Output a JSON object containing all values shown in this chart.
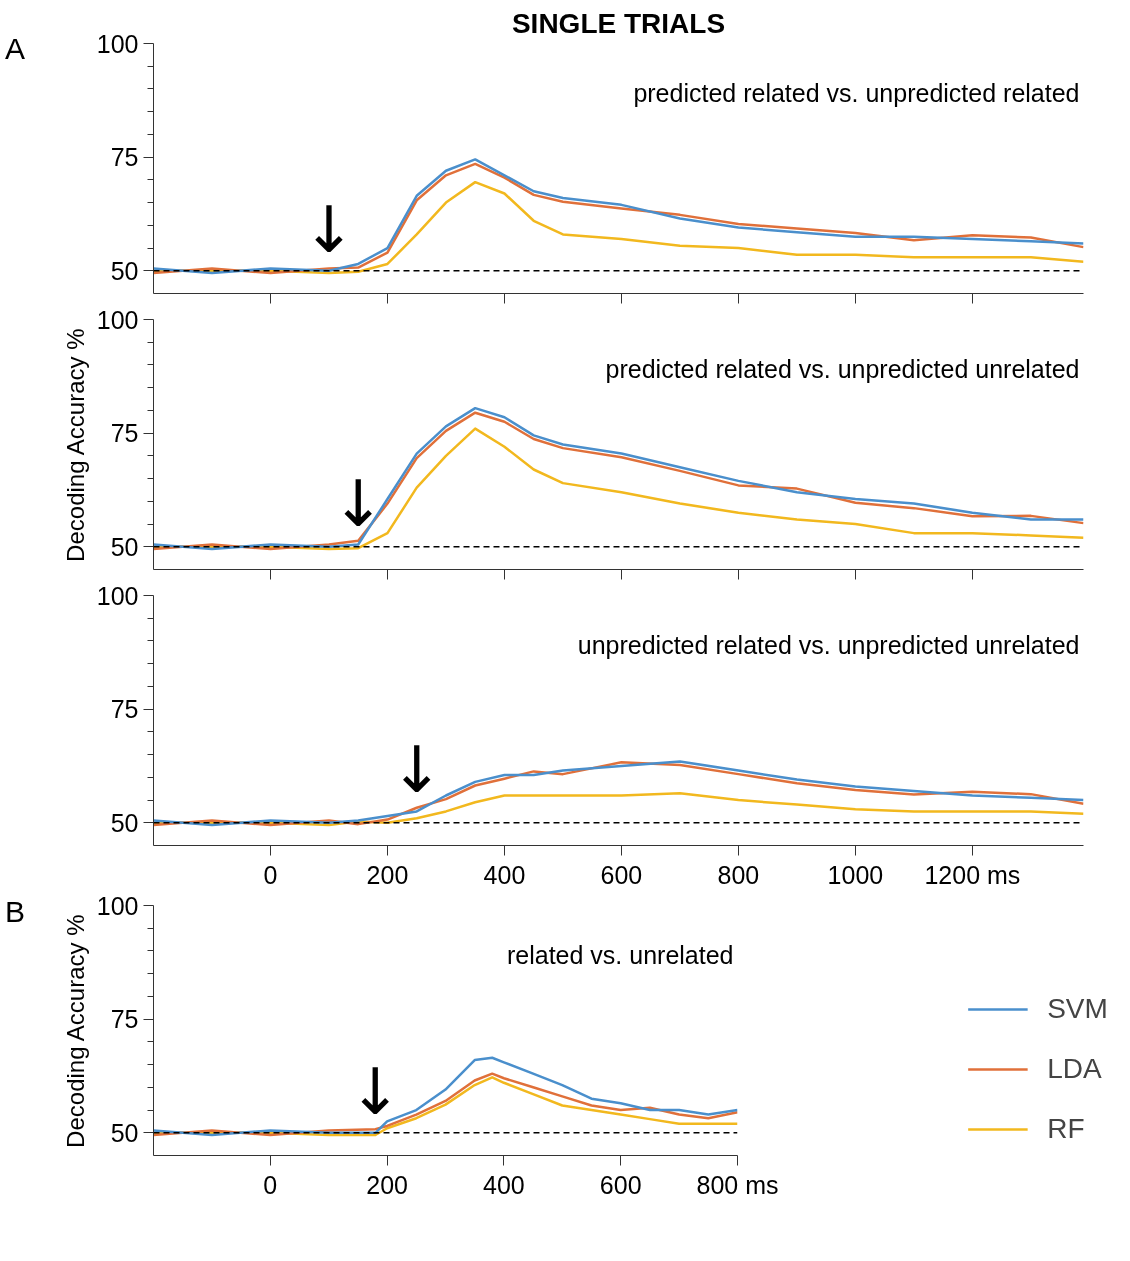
{
  "chart_data": [
    {
      "type": "line",
      "title": "SINGLE TRIALS",
      "subtitle": "predicted related vs. unpredicted related",
      "annotations": [
        "A",
        {
          "text": "↓",
          "x": 100,
          "y": 50
        }
      ],
      "x": [
        -200,
        -100,
        0,
        100,
        150,
        200,
        250,
        300,
        350,
        400,
        450,
        500,
        600,
        700,
        800,
        900,
        1000,
        1100,
        1200,
        1300,
        1390
      ],
      "series": [
        {
          "color": "#4a8fcc",
          "values": [
            50.5,
            49.5,
            50.5,
            50,
            51.5,
            55,
            66.5,
            72,
            74.5,
            71,
            67.5,
            66,
            64.5,
            61.5,
            59.5,
            58.5,
            57.5,
            57.5,
            57,
            56.5,
            56
          ]
        },
        {
          "color": "#e0703a",
          "values": [
            49.5,
            50.5,
            49.5,
            50.5,
            50.7,
            54,
            65.5,
            71,
            73.5,
            70.5,
            66.7,
            65.2,
            63.7,
            62.3,
            60.3,
            59.3,
            58.3,
            56.7,
            57.8,
            57.3,
            55.2
          ]
        },
        {
          "color": "#f2b81e",
          "values": [
            50,
            50,
            50,
            49.5,
            49.8,
            51.5,
            58,
            65,
            69.5,
            67,
            61,
            58,
            57,
            55.5,
            55,
            53.5,
            53.5,
            53,
            53,
            53,
            52
          ]
        }
      ],
      "xlim": [
        -200,
        1390
      ],
      "xticks": [
        0,
        200,
        400,
        600,
        800,
        1000,
        1200
      ],
      "ylim": [
        45,
        100
      ],
      "yticks": [
        50,
        {
          "value": 55,
          "label": null
        },
        {
          "value": 60,
          "label": null
        },
        {
          "value": 65,
          "label": null
        },
        {
          "value": 70,
          "label": null
        },
        75,
        {
          "value": 80,
          "label": null
        },
        {
          "value": 85,
          "label": null
        },
        {
          "value": 90,
          "label": null
        },
        {
          "value": 95,
          "label": null
        },
        100
      ],
      "tick_labels": "y",
      "grid": false,
      "line_style": "solid",
      "ref_lines": [
        {
          "axis": "y",
          "value": 50,
          "color": "#000000",
          "line_style": "dashed"
        }
      ]
    },
    {
      "type": "line",
      "subtitle": "predicted related vs. unpredicted unrelated",
      "ylabel": "Decoding Accuracy %",
      "annotations": [
        {
          "text": "↓",
          "x": 150,
          "y": 50.5
        }
      ],
      "x": [
        -200,
        -100,
        0,
        100,
        150,
        200,
        250,
        300,
        350,
        400,
        450,
        500,
        600,
        700,
        800,
        900,
        1000,
        1100,
        1200,
        1300,
        1390
      ],
      "series": [
        {
          "color": "#4a8fcc",
          "values": [
            50.5,
            49.5,
            50.5,
            50,
            50.5,
            60.5,
            70.5,
            76.5,
            80.5,
            78.5,
            74.5,
            72.5,
            70.5,
            67.5,
            64.5,
            62,
            60.5,
            59.5,
            57.5,
            56,
            56
          ]
        },
        {
          "color": "#e0703a",
          "values": [
            49.5,
            50.5,
            49.5,
            50.5,
            51.3,
            59.5,
            69.5,
            75.5,
            79.5,
            77.5,
            73.7,
            71.7,
            69.7,
            66.7,
            63.5,
            62.8,
            59.7,
            58.5,
            56.7,
            56.8,
            55.2
          ]
        },
        {
          "color": "#f2b81e",
          "values": [
            50,
            50,
            50,
            49.5,
            49.7,
            53,
            63,
            70,
            76,
            72,
            67,
            64,
            62,
            59.5,
            57.5,
            56,
            55,
            53,
            53,
            52.5,
            52
          ]
        }
      ],
      "xlim": [
        -200,
        1390
      ],
      "xticks": [
        0,
        200,
        400,
        600,
        800,
        1000,
        1200
      ],
      "ylim": [
        45,
        100
      ],
      "yticks": [
        50,
        {
          "value": 55,
          "label": null
        },
        {
          "value": 60,
          "label": null
        },
        {
          "value": 65,
          "label": null
        },
        {
          "value": 70,
          "label": null
        },
        75,
        {
          "value": 80,
          "label": null
        },
        {
          "value": 85,
          "label": null
        },
        {
          "value": 90,
          "label": null
        },
        {
          "value": 95,
          "label": null
        },
        100
      ],
      "tick_labels": "y",
      "grid": false,
      "line_style": "solid",
      "ref_lines": [
        {
          "axis": "y",
          "value": 50,
          "color": "#000000",
          "line_style": "dashed"
        }
      ]
    },
    {
      "type": "line",
      "subtitle": "unpredicted related vs. unpredicted unrelated",
      "annotations": [
        {
          "text": "↓",
          "x": 250,
          "y": 52.5
        }
      ],
      "x": [
        -200,
        -100,
        0,
        100,
        150,
        200,
        250,
        300,
        350,
        400,
        450,
        500,
        600,
        700,
        800,
        900,
        1000,
        1100,
        1200,
        1300,
        1390
      ],
      "series": [
        {
          "color": "#4a8fcc",
          "values": [
            50.5,
            49.5,
            50.5,
            50,
            50.5,
            51.5,
            52.5,
            56,
            59,
            60.5,
            60.5,
            61.5,
            62.5,
            63.5,
            61.5,
            59.5,
            58,
            57,
            56,
            55.5,
            55
          ]
        },
        {
          "color": "#e0703a",
          "values": [
            49.5,
            50.5,
            49.5,
            50.5,
            49.7,
            50.7,
            53.3,
            55.2,
            58.2,
            59.7,
            61.3,
            60.7,
            63.3,
            62.7,
            60.7,
            58.7,
            57.2,
            56.2,
            56.8,
            56.3,
            54.2
          ]
        },
        {
          "color": "#f2b81e",
          "values": [
            50,
            50,
            50,
            49.5,
            50.3,
            50,
            51,
            52.5,
            54.5,
            56,
            56,
            56,
            56,
            56.5,
            55,
            54,
            53,
            52.5,
            52.5,
            52.5,
            52
          ]
        }
      ],
      "xlim": [
        -200,
        1390
      ],
      "xticks": [
        0,
        200,
        400,
        600,
        800,
        1000,
        {
          "value": 1200,
          "label": "1200 ms"
        }
      ],
      "ylim": [
        45,
        100
      ],
      "yticks": [
        50,
        {
          "value": 55,
          "label": null
        },
        {
          "value": 60,
          "label": null
        },
        {
          "value": 65,
          "label": null
        },
        {
          "value": 70,
          "label": null
        },
        75,
        {
          "value": 80,
          "label": null
        },
        {
          "value": 85,
          "label": null
        },
        {
          "value": 90,
          "label": null
        },
        {
          "value": 95,
          "label": null
        },
        100
      ],
      "grid": false,
      "line_style": "solid",
      "ref_lines": [
        {
          "axis": "y",
          "value": 50,
          "color": "#000000",
          "line_style": "dashed"
        }
      ]
    },
    {
      "type": "line",
      "subtitle": "related vs. unrelated",
      "ylabel": "Decoding Accuracy %",
      "annotations": [
        "B",
        {
          "text": "↓",
          "x": 180,
          "y": 50
        }
      ],
      "x": [
        -200,
        -100,
        0,
        100,
        180,
        200,
        250,
        300,
        350,
        380,
        400,
        450,
        500,
        550,
        600,
        650,
        700,
        750,
        800
      ],
      "series": [
        {
          "name": "SVM",
          "color": "#4a8fcc",
          "values": [
            50.5,
            49.5,
            50.5,
            50,
            50,
            52.5,
            55,
            59.5,
            66,
            66.5,
            65.5,
            63,
            60.5,
            57.5,
            56.5,
            55,
            55,
            54,
            55
          ]
        },
        {
          "name": "LDA",
          "color": "#e0703a",
          "values": [
            49.5,
            50.5,
            49.5,
            50.5,
            50.8,
            51.5,
            54,
            57,
            61.5,
            63,
            62,
            60,
            58,
            56,
            55,
            55.5,
            54,
            53.2,
            54.5
          ]
        },
        {
          "name": "RF",
          "color": "#f2b81e",
          "values": [
            50,
            50,
            50,
            49.5,
            49.5,
            51,
            53.2,
            56.2,
            60.5,
            62.2,
            61,
            58.5,
            56,
            55,
            54,
            53,
            52,
            52,
            52
          ]
        }
      ],
      "xlim": [
        -200,
        800
      ],
      "xticks": [
        0,
        200,
        400,
        600,
        {
          "value": 800,
          "label": "800 ms"
        }
      ],
      "ylim": [
        45,
        100
      ],
      "yticks": [
        50,
        {
          "value": 55,
          "label": null
        },
        {
          "value": 60,
          "label": null
        },
        {
          "value": 65,
          "label": null
        },
        {
          "value": 70,
          "label": null
        },
        75,
        {
          "value": 80,
          "label": null
        },
        {
          "value": 85,
          "label": null
        },
        {
          "value": 90,
          "label": null
        },
        {
          "value": 95,
          "label": null
        },
        100
      ],
      "grid": false,
      "legend": "right",
      "line_style": "solid",
      "ref_lines": [
        {
          "axis": "y",
          "value": 50,
          "color": "#000000",
          "line_style": "dashed"
        }
      ]
    }
  ]
}
